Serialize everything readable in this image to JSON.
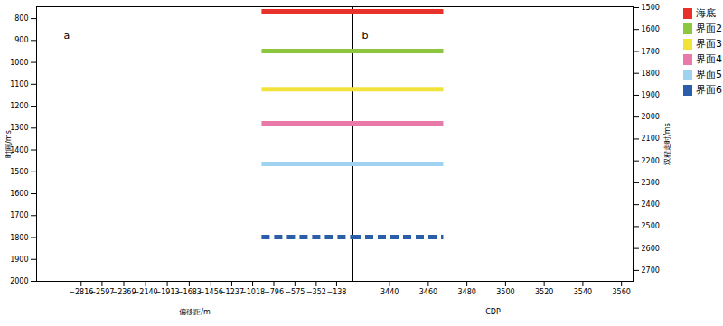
{
  "chart_data": {
    "type": "seismic_section",
    "legend": "right",
    "panels": [
      {
        "label": "a",
        "x_label": "偏移距/m",
        "y_label": "时间/ms",
        "xlim": [
          -3283,
          33
        ],
        "xticks": [
          -2816,
          -2597,
          -2369,
          -2140,
          -1913,
          -1683,
          -1456,
          -1237,
          -1018,
          -796,
          -575,
          -352,
          -138
        ],
        "ylim": [
          746,
          2000
        ],
        "yticks": [
          800,
          900,
          1000,
          1100,
          1200,
          1300,
          1400,
          1500,
          1600,
          1700,
          1800,
          1900,
          2000
        ]
      },
      {
        "label": "b",
        "x_label": "CDP",
        "y2_label": "双程走时/ms",
        "xlim": [
          3421,
          3566
        ],
        "xticks": [
          3440,
          3460,
          3480,
          3500,
          3520,
          3540,
          3560
        ],
        "y2lim": [
          1496,
          2750
        ],
        "y2ticks": [
          1500,
          1600,
          1700,
          1800,
          1900,
          2000,
          2100,
          2200,
          2300,
          2400,
          2500,
          2600,
          2700
        ]
      }
    ],
    "series": [
      {
        "name": "海底",
        "color": "#e8312a",
        "line_style": "solid",
        "time_ms": 767,
        "twt_ms": 1517,
        "offset_start_m": -920,
        "cdp_end": 3468
      },
      {
        "name": "界面2",
        "color": "#8dc63f",
        "line_style": "solid",
        "time_ms": 948,
        "twt_ms": 1698,
        "offset_start_m": -920,
        "cdp_end": 3468
      },
      {
        "name": "界面3",
        "color": "#f2e33a",
        "line_style": "solid",
        "time_ms": 1122,
        "twt_ms": 1872,
        "offset_start_m": -920,
        "cdp_end": 3468
      },
      {
        "name": "界面4",
        "color": "#e879a8",
        "line_style": "solid",
        "time_ms": 1278,
        "twt_ms": 2028,
        "offset_start_m": -920,
        "cdp_end": 3468
      },
      {
        "name": "界面5",
        "color": "#9fd3ef",
        "line_style": "solid",
        "time_ms": 1464,
        "twt_ms": 2214,
        "offset_start_m": -920,
        "cdp_end": 3468
      },
      {
        "name": "界面6",
        "color": "#2a5ea8",
        "line_style": "dashed",
        "time_ms": 1798,
        "twt_ms": 2548,
        "offset_start_m": -920,
        "cdp_end": 3468
      }
    ]
  }
}
